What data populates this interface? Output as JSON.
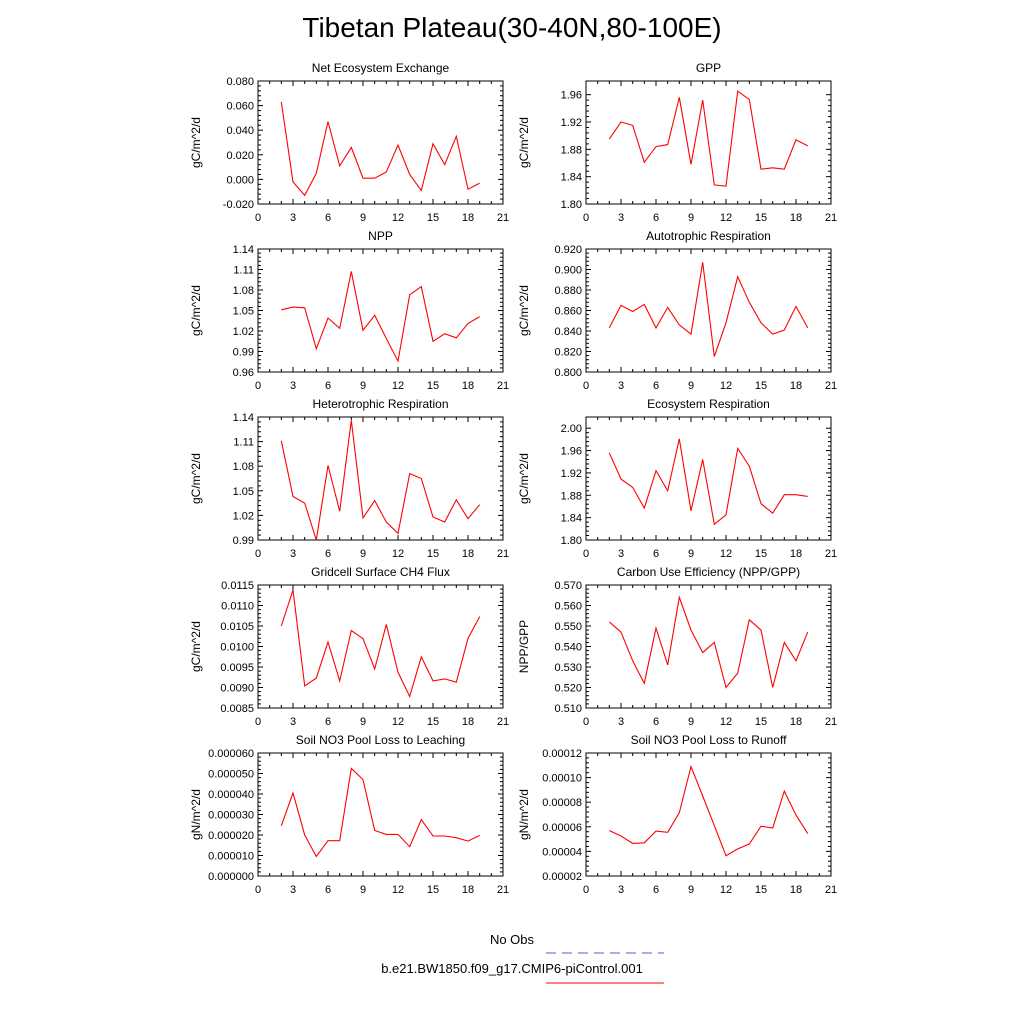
{
  "title": "Tibetan Plateau(30-40N,80-100E)",
  "series_color": "#ff0000",
  "obs_color": "#5555dd",
  "legend": {
    "obs_label": "No Obs",
    "model_label": "b.e21.BW1850.f09_g17.CMIP6-piControl.001"
  },
  "chart_data": [
    {
      "type": "line",
      "title": "Net Ecosystem Exchange",
      "ylabel": "gC/m^2/d",
      "xlim": [
        0,
        21
      ],
      "xticks": [
        "0",
        "3",
        "6",
        "9",
        "12",
        "15",
        "18",
        "21"
      ],
      "ylim": [
        -0.02,
        0.08
      ],
      "yticks": [
        "-0.020",
        "0.000",
        "0.020",
        "0.040",
        "0.060",
        "0.080"
      ],
      "x": [
        2,
        3,
        4,
        5,
        6,
        7,
        8,
        9,
        10,
        11,
        12,
        13,
        14,
        15,
        16,
        17,
        18,
        19
      ],
      "values": [
        0.063,
        -0.002,
        -0.013,
        0.005,
        0.047,
        0.011,
        0.026,
        0.001,
        0.001,
        0.006,
        0.028,
        0.004,
        -0.009,
        0.029,
        0.012,
        0.035,
        -0.008,
        -0.003
      ]
    },
    {
      "type": "line",
      "title": "GPP",
      "ylabel": "gC/m^2/d",
      "xlim": [
        0,
        21
      ],
      "xticks": [
        "0",
        "3",
        "6",
        "9",
        "12",
        "15",
        "18",
        "21"
      ],
      "ylim": [
        1.8,
        1.98
      ],
      "yticks": [
        "1.80",
        "1.84",
        "1.88",
        "1.92",
        "1.96"
      ],
      "x": [
        2,
        3,
        4,
        5,
        6,
        7,
        8,
        9,
        10,
        11,
        12,
        13,
        14,
        15,
        16,
        17,
        18,
        19
      ],
      "values": [
        1.895,
        1.92,
        1.915,
        1.861,
        1.884,
        1.887,
        1.956,
        1.858,
        1.952,
        1.828,
        1.826,
        1.965,
        1.953,
        1.851,
        1.853,
        1.851,
        1.894,
        1.885
      ]
    },
    {
      "type": "line",
      "title": "NPP",
      "ylabel": "gC/m^2/d",
      "xlim": [
        0,
        21
      ],
      "xticks": [
        "0",
        "3",
        "6",
        "9",
        "12",
        "15",
        "18",
        "21"
      ],
      "ylim": [
        0.96,
        1.14
      ],
      "yticks": [
        "0.96",
        "0.99",
        "1.02",
        "1.05",
        "1.08",
        "1.11",
        "1.14"
      ],
      "x": [
        2,
        3,
        4,
        5,
        6,
        7,
        8,
        9,
        10,
        11,
        12,
        13,
        14,
        15,
        16,
        17,
        18,
        19
      ],
      "values": [
        1.051,
        1.055,
        1.054,
        0.994,
        1.039,
        1.024,
        1.107,
        1.021,
        1.043,
        1.009,
        0.976,
        1.073,
        1.085,
        1.005,
        1.016,
        1.01,
        1.031,
        1.041
      ]
    },
    {
      "type": "line",
      "title": "Autotrophic Respiration",
      "ylabel": "gC/m^2/d",
      "xlim": [
        0,
        21
      ],
      "xticks": [
        "0",
        "3",
        "6",
        "9",
        "12",
        "15",
        "18",
        "21"
      ],
      "ylim": [
        0.8,
        0.92
      ],
      "yticks": [
        "0.800",
        "0.820",
        "0.840",
        "0.860",
        "0.880",
        "0.900",
        "0.920"
      ],
      "x": [
        2,
        3,
        4,
        5,
        6,
        7,
        8,
        9,
        10,
        11,
        12,
        13,
        14,
        15,
        16,
        17,
        18,
        19
      ],
      "values": [
        0.843,
        0.865,
        0.859,
        0.866,
        0.843,
        0.863,
        0.846,
        0.837,
        0.907,
        0.815,
        0.848,
        0.893,
        0.868,
        0.848,
        0.837,
        0.841,
        0.864,
        0.843
      ]
    },
    {
      "type": "line",
      "title": "Heterotrophic Respiration",
      "ylabel": "gC/m^2/d",
      "xlim": [
        0,
        21
      ],
      "xticks": [
        "0",
        "3",
        "6",
        "9",
        "12",
        "15",
        "18",
        "21"
      ],
      "ylim": [
        0.99,
        1.14
      ],
      "yticks": [
        "0.99",
        "1.02",
        "1.05",
        "1.08",
        "1.11",
        "1.14"
      ],
      "x": [
        2,
        3,
        4,
        5,
        6,
        7,
        8,
        9,
        10,
        11,
        12,
        13,
        14,
        15,
        16,
        17,
        18,
        19
      ],
      "values": [
        1.111,
        1.043,
        1.035,
        0.99,
        1.081,
        1.025,
        1.136,
        1.017,
        1.038,
        1.012,
        0.998,
        1.071,
        1.065,
        1.018,
        1.012,
        1.039,
        1.016,
        1.033
      ]
    },
    {
      "type": "line",
      "title": "Ecosystem Respiration",
      "ylabel": "gC/m^2/d",
      "xlim": [
        0,
        21
      ],
      "xticks": [
        "0",
        "3",
        "6",
        "9",
        "12",
        "15",
        "18",
        "21"
      ],
      "ylim": [
        1.8,
        2.02
      ],
      "yticks": [
        "1.80",
        "1.84",
        "1.88",
        "1.92",
        "1.96",
        "2.00"
      ],
      "x": [
        2,
        3,
        4,
        5,
        6,
        7,
        8,
        9,
        10,
        11,
        12,
        13,
        14,
        15,
        16,
        17,
        18,
        19
      ],
      "values": [
        1.956,
        1.909,
        1.894,
        1.857,
        1.924,
        1.888,
        1.981,
        1.852,
        1.944,
        1.828,
        1.845,
        1.964,
        1.932,
        1.865,
        1.848,
        1.881,
        1.881,
        1.878
      ]
    },
    {
      "type": "line",
      "title": "Gridcell Surface CH4 Flux",
      "ylabel": "gC/m^2/d",
      "xlim": [
        0,
        21
      ],
      "xticks": [
        "0",
        "3",
        "6",
        "9",
        "12",
        "15",
        "18",
        "21"
      ],
      "ylim": [
        0.0085,
        0.0115
      ],
      "yticks": [
        "0.0085",
        "0.0090",
        "0.0095",
        "0.0100",
        "0.0105",
        "0.0110",
        "0.0115"
      ],
      "x": [
        2,
        3,
        4,
        5,
        6,
        7,
        8,
        9,
        10,
        11,
        12,
        13,
        14,
        15,
        16,
        17,
        18,
        19
      ],
      "values": [
        0.0105,
        0.01138,
        0.00904,
        0.00923,
        0.01011,
        0.00916,
        0.01039,
        0.01019,
        0.00945,
        0.01054,
        0.00937,
        0.00878,
        0.00975,
        0.00916,
        0.00921,
        0.00913,
        0.0102,
        0.01073
      ]
    },
    {
      "type": "line",
      "title": "Carbon Use Efficiency (NPP/GPP)",
      "ylabel": "NPP/GPP",
      "xlim": [
        0,
        21
      ],
      "xticks": [
        "0",
        "3",
        "6",
        "9",
        "12",
        "15",
        "18",
        "21"
      ],
      "ylim": [
        0.51,
        0.57
      ],
      "yticks": [
        "0.510",
        "0.520",
        "0.530",
        "0.540",
        "0.550",
        "0.560",
        "0.570"
      ],
      "x": [
        2,
        3,
        4,
        5,
        6,
        7,
        8,
        9,
        10,
        11,
        12,
        13,
        14,
        15,
        16,
        17,
        18,
        19
      ],
      "values": [
        0.552,
        0.547,
        0.533,
        0.522,
        0.549,
        0.531,
        0.564,
        0.548,
        0.537,
        0.542,
        0.52,
        0.527,
        0.553,
        0.548,
        0.52,
        0.542,
        0.533,
        0.547
      ]
    },
    {
      "type": "line",
      "title": "Soil NO3 Pool Loss to Leaching",
      "ylabel": "gN/m^2/d",
      "xlim": [
        0,
        21
      ],
      "xticks": [
        "0",
        "3",
        "6",
        "9",
        "12",
        "15",
        "18",
        "21"
      ],
      "ylim": [
        0,
        6e-05
      ],
      "yticks": [
        "0.000000",
        "0.000010",
        "0.000020",
        "0.000030",
        "0.000040",
        "0.000050",
        "0.000060"
      ],
      "x": [
        2,
        3,
        4,
        5,
        6,
        7,
        8,
        9,
        10,
        11,
        12,
        13,
        14,
        15,
        16,
        17,
        18,
        19
      ],
      "values": [
        2.45e-05,
        4.05e-05,
        2e-05,
        9.5e-06,
        1.72e-05,
        1.72e-05,
        5.25e-05,
        4.7e-05,
        2.22e-05,
        2.03e-05,
        2.03e-05,
        1.43e-05,
        2.75e-05,
        1.95e-05,
        1.95e-05,
        1.87e-05,
        1.7e-05,
        1.98e-05
      ]
    },
    {
      "type": "line",
      "title": "Soil NO3 Pool Loss to Runoff",
      "ylabel": "gN/m^2/d",
      "xlim": [
        0,
        21
      ],
      "xticks": [
        "0",
        "3",
        "6",
        "9",
        "12",
        "15",
        "18",
        "21"
      ],
      "ylim": [
        2e-05,
        0.00012
      ],
      "yticks": [
        "0.00002",
        "0.00004",
        "0.00006",
        "0.00008",
        "0.00010",
        "0.00012"
      ],
      "x": [
        2,
        3,
        4,
        5,
        6,
        7,
        8,
        9,
        10,
        11,
        12,
        13,
        14,
        15,
        16,
        17,
        18,
        19
      ],
      "values": [
        5.7e-05,
        5.25e-05,
        4.65e-05,
        4.7e-05,
        5.65e-05,
        5.55e-05,
        7.15e-05,
        0.000109,
        8.5e-05,
        6.1e-05,
        3.65e-05,
        4.2e-05,
        4.6e-05,
        6.05e-05,
        5.9e-05,
        8.9e-05,
        6.95e-05,
        5.45e-05
      ]
    }
  ]
}
